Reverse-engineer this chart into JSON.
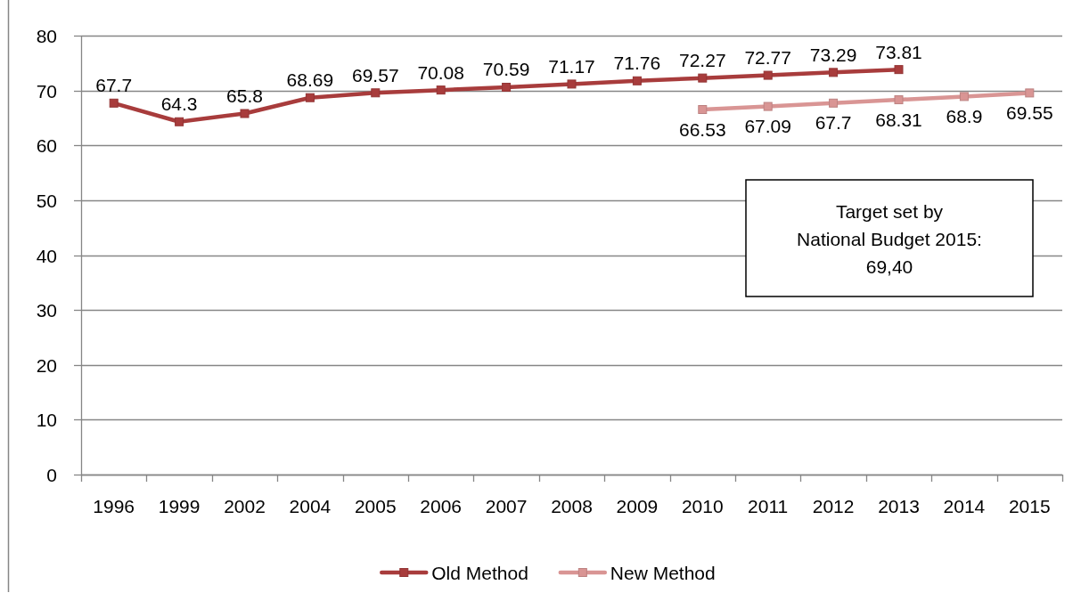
{
  "chart_data": {
    "type": "line",
    "categories": [
      "1996",
      "1999",
      "2002",
      "2004",
      "2005",
      "2006",
      "2007",
      "2008",
      "2009",
      "2010",
      "2011",
      "2012",
      "2013",
      "2014",
      "2015"
    ],
    "series": [
      {
        "name": "Old Method",
        "color": "#a83c3c",
        "values": [
          67.7,
          64.3,
          65.8,
          68.69,
          69.57,
          70.08,
          70.59,
          71.17,
          71.76,
          72.27,
          72.77,
          73.29,
          73.81,
          null,
          null
        ]
      },
      {
        "name": "New Method",
        "color": "#d99594",
        "values": [
          null,
          null,
          null,
          null,
          null,
          null,
          null,
          null,
          null,
          66.53,
          67.09,
          67.7,
          68.31,
          68.9,
          69.55
        ]
      }
    ],
    "ylim": [
      0,
      80
    ],
    "yticks": [
      0,
      10,
      20,
      30,
      40,
      50,
      60,
      70,
      80
    ],
    "grid": "y",
    "legend": "bottom",
    "marker": "square",
    "line_style": "solid",
    "data_labels": true,
    "annotations": [
      "Target set by\nNational Budget 2015:\n69,40"
    ]
  }
}
